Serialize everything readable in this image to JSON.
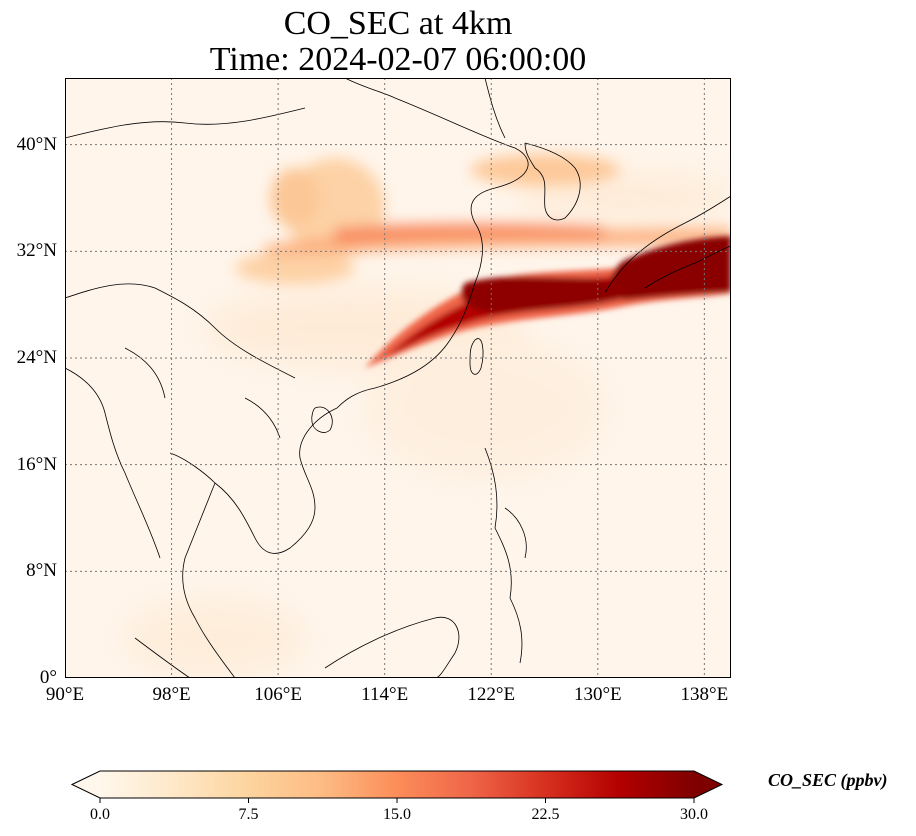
{
  "title": "CO_SEC at 4km",
  "subtitle": "Time: 2024-02-07 06:00:00",
  "map": {
    "extent": {
      "lon_min": 90,
      "lon_max": 140,
      "lat_min": 0,
      "lat_max": 45
    },
    "lat_ticks": [
      {
        "value": 0,
        "label": "0°"
      },
      {
        "value": 8,
        "label": "8°N"
      },
      {
        "value": 16,
        "label": "16°N"
      },
      {
        "value": 24,
        "label": "24°N"
      },
      {
        "value": 32,
        "label": "32°N"
      },
      {
        "value": 40,
        "label": "40°N"
      }
    ],
    "lon_ticks": [
      {
        "value": 90,
        "label": "90°E"
      },
      {
        "value": 98,
        "label": "98°E"
      },
      {
        "value": 106,
        "label": "106°E"
      },
      {
        "value": 114,
        "label": "114°E"
      },
      {
        "value": 122,
        "label": "122°E"
      },
      {
        "value": 130,
        "label": "130°E"
      },
      {
        "value": 138,
        "label": "138°E"
      }
    ],
    "gridlines": "dotted",
    "background_color": "#fff5eb",
    "coastline_color": "#000000"
  },
  "colorbar": {
    "label": "CO_SEC (ppbv)",
    "colormap": "OrRd",
    "min": 0,
    "max": 30,
    "extend": "both",
    "ticks": [
      {
        "value": 0,
        "label": "0.0"
      },
      {
        "value": 7.5,
        "label": "7.5"
      },
      {
        "value": 15,
        "label": "15.0"
      },
      {
        "value": 22.5,
        "label": "22.5"
      },
      {
        "value": 30,
        "label": "30.0"
      }
    ],
    "colors": [
      "#fff7ec",
      "#fee8c8",
      "#fdd49e",
      "#fdbb84",
      "#fc8d59",
      "#ef6548",
      "#d7301f",
      "#b30000",
      "#7f0000"
    ]
  }
}
